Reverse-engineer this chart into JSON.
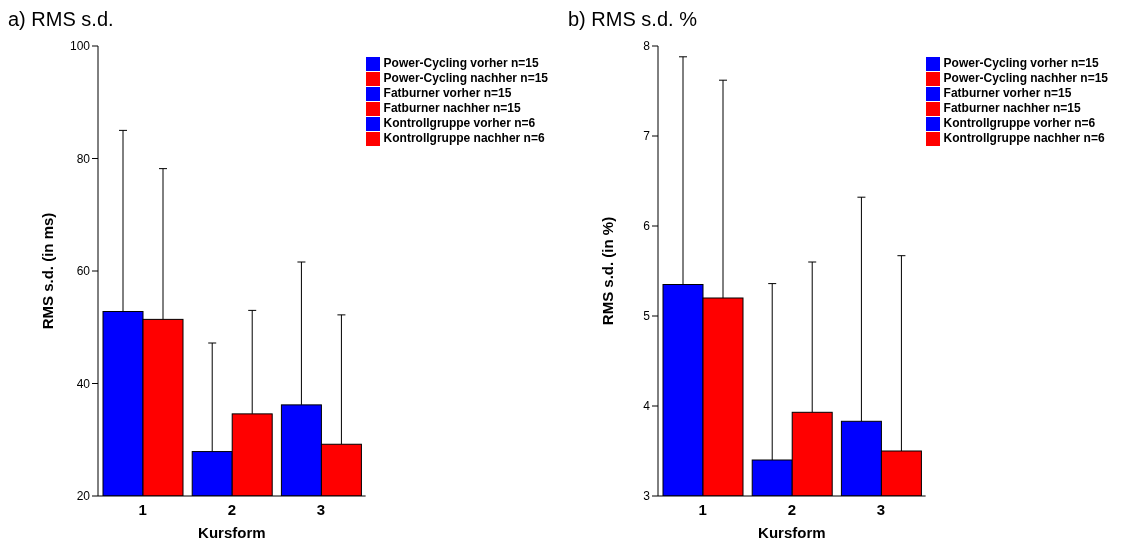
{
  "chart_data": [
    {
      "type": "bar",
      "title": "a) RMS s.d.",
      "xlabel": "Kursform",
      "ylabel": "RMS s.d. (in ms)",
      "categories": [
        "1",
        "2",
        "3"
      ],
      "ylim": [
        20,
        100
      ],
      "yticks": [
        20,
        40,
        60,
        80,
        100
      ],
      "legend": "top right",
      "series": [
        {
          "name": "Power-Cycling vorher  n=15",
          "color": "#0000ff",
          "values": [
            52.8,
            null,
            null
          ],
          "errors": [
            32.2,
            null,
            null
          ]
        },
        {
          "name": "Power-Cycling nachher  n=15",
          "color": "#ff0000",
          "values": [
            51.4,
            null,
            null
          ],
          "errors": [
            26.8,
            null,
            null
          ]
        },
        {
          "name": "Fatburner vorher  n=15",
          "color": "#0000ff",
          "values": [
            null,
            27.9,
            null
          ],
          "errors": [
            null,
            19.3,
            null
          ]
        },
        {
          "name": "Fatburner nachher  n=15",
          "color": "#ff0000",
          "values": [
            null,
            34.6,
            null
          ],
          "errors": [
            null,
            18.4,
            null
          ]
        },
        {
          "name": "Kontrollgruppe vorher  n=6",
          "color": "#0000ff",
          "values": [
            null,
            null,
            36.2
          ],
          "errors": [
            null,
            null,
            25.4
          ]
        },
        {
          "name": "Kontrollgruppe nachher  n=6",
          "color": "#ff0000",
          "values": [
            null,
            null,
            29.2
          ],
          "errors": [
            null,
            null,
            23.0
          ]
        }
      ]
    },
    {
      "type": "bar",
      "title": "b) RMS s.d. %",
      "xlabel": "Kursform",
      "ylabel": "RMS s.d. (in %)",
      "categories": [
        "1",
        "2",
        "3"
      ],
      "ylim": [
        3,
        8
      ],
      "yticks": [
        3,
        4,
        5,
        6,
        7,
        8
      ],
      "legend": "top right",
      "series": [
        {
          "name": "Power-Cycling vorher  n=15",
          "color": "#0000ff",
          "values": [
            5.35,
            null,
            null
          ],
          "errors": [
            2.53,
            null,
            null
          ]
        },
        {
          "name": "Power-Cycling nachher  n=15",
          "color": "#ff0000",
          "values": [
            5.2,
            null,
            null
          ],
          "errors": [
            2.42,
            null,
            null
          ]
        },
        {
          "name": "Fatburner vorher  n=15",
          "color": "#0000ff",
          "values": [
            null,
            3.4,
            null
          ],
          "errors": [
            null,
            1.96,
            null
          ]
        },
        {
          "name": "Fatburner nachher  n=15",
          "color": "#ff0000",
          "values": [
            null,
            3.93,
            null
          ],
          "errors": [
            null,
            1.67,
            null
          ]
        },
        {
          "name": "Kontrollgruppe vorher  n=6",
          "color": "#0000ff",
          "values": [
            null,
            null,
            3.83
          ],
          "errors": [
            null,
            null,
            2.49
          ]
        },
        {
          "name": "Kontrollgruppe nachher  n=6",
          "color": "#ff0000",
          "values": [
            null,
            null,
            3.5
          ],
          "errors": [
            null,
            null,
            2.17
          ]
        }
      ]
    }
  ]
}
